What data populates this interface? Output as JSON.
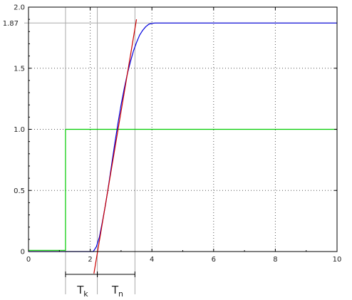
{
  "chart_data": {
    "type": "line",
    "xlim": [
      0,
      10
    ],
    "ylim": [
      0,
      2.0
    ],
    "x_ticks": [
      0,
      2,
      4,
      6,
      8,
      10
    ],
    "y_ticks": [
      0,
      0.5,
      1.0,
      1.5,
      2.0
    ],
    "x_tick_labels": [
      "0",
      "2",
      "4",
      "6",
      "8",
      "10"
    ],
    "y_tick_labels": [
      "0",
      "0.5",
      "1.0",
      "1.5",
      "2.0"
    ],
    "grid": true,
    "grid_style": "dotted",
    "series": [
      {
        "role": "step input",
        "color": "#00cc00",
        "x": [
          0,
          1.2,
          1.2,
          10
        ],
        "y": [
          0.01,
          0.01,
          1.0,
          1.0
        ]
      },
      {
        "role": "step response",
        "color": "#0000dd",
        "x": [
          0,
          2.1,
          2.2,
          2.3,
          2.4,
          2.5,
          2.6,
          2.7,
          2.8,
          2.9,
          3.0,
          3.1,
          3.2,
          3.3,
          3.4,
          3.5,
          3.6,
          3.7,
          3.8,
          3.9,
          4.0,
          4.1,
          4.2,
          4.4,
          4.6,
          5.0,
          10
        ],
        "y": [
          0,
          0.0,
          0.04,
          0.12,
          0.25,
          0.39,
          0.55,
          0.72,
          0.89,
          1.05,
          1.2,
          1.33,
          1.45,
          1.55,
          1.64,
          1.71,
          1.77,
          1.81,
          1.84,
          1.86,
          1.867,
          1.87,
          1.87,
          1.87,
          1.87,
          1.87,
          1.87
        ]
      },
      {
        "role": "tangent at inflection point",
        "color": "#cc0000",
        "x": [
          2.12,
          3.5
        ],
        "y": [
          -0.18,
          1.9
        ]
      }
    ],
    "reference_lines": {
      "y_value": 1.87,
      "y_label": "1.87",
      "x_values": [
        1.2,
        2.23,
        3.45
      ],
      "color": "#aaaaaa"
    },
    "annotations": {
      "tk": {
        "main": "T",
        "sub": "k",
        "from": 1.2,
        "to": 2.23
      },
      "tn": {
        "main": "T",
        "sub": "n",
        "from": 2.23,
        "to": 3.45
      }
    }
  }
}
